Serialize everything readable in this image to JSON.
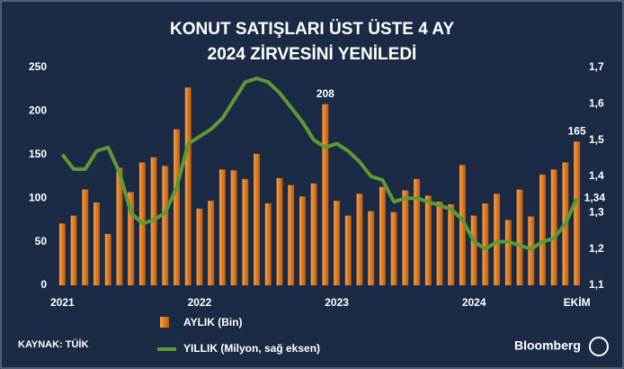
{
  "chart_data": {
    "type": "bar_line",
    "title": [
      "KONUT SATIŞLARI ÜST ÜSTE 4 AY",
      "2024 ZİRVESİNİ YENİLEDİ"
    ],
    "categories": [
      "2021",
      null,
      null,
      null,
      null,
      null,
      null,
      null,
      null,
      null,
      null,
      null,
      "2022",
      null,
      null,
      null,
      null,
      null,
      null,
      null,
      null,
      null,
      null,
      null,
      "2023",
      null,
      null,
      null,
      null,
      null,
      null,
      null,
      null,
      null,
      null,
      null,
      "2024",
      null,
      null,
      null,
      null,
      null,
      null,
      null,
      null,
      "EKİM"
    ],
    "series": [
      {
        "name": "AYLIK (Bin)",
        "color": "#e07a1f",
        "values": [
          71,
          80,
          110,
          95,
          59,
          135,
          107,
          141,
          147,
          137,
          179,
          227,
          88,
          97,
          133,
          132,
          122,
          151,
          94,
          123,
          115,
          102,
          117,
          208,
          97,
          80,
          105,
          85,
          113,
          84,
          109,
          122,
          103,
          96,
          93,
          138,
          80,
          94,
          105,
          75,
          110,
          79,
          127,
          133,
          141,
          165
        ],
        "value_labels": [
          null,
          null,
          null,
          null,
          null,
          null,
          null,
          null,
          null,
          null,
          null,
          null,
          null,
          null,
          null,
          null,
          null,
          null,
          null,
          null,
          null,
          null,
          null,
          "208",
          null,
          null,
          null,
          null,
          null,
          null,
          null,
          null,
          null,
          null,
          null,
          null,
          null,
          null,
          null,
          null,
          null,
          null,
          null,
          null,
          null,
          "165"
        ]
      },
      {
        "name": "YILLIK (Milyon, sağ eksen)",
        "color": "#5c9a35",
        "axis": "y2",
        "values": [
          1.46,
          1.42,
          1.42,
          1.47,
          1.48,
          1.41,
          1.3,
          1.27,
          1.28,
          1.3,
          1.37,
          1.49,
          1.51,
          1.53,
          1.56,
          1.61,
          1.66,
          1.67,
          1.66,
          1.63,
          1.59,
          1.55,
          1.5,
          1.48,
          1.49,
          1.47,
          1.44,
          1.4,
          1.39,
          1.33,
          1.34,
          1.34,
          1.33,
          1.32,
          1.31,
          1.28,
          1.22,
          1.2,
          1.22,
          1.22,
          1.21,
          1.2,
          1.22,
          1.23,
          1.27,
          1.34
        ],
        "value_labels": [
          null,
          null,
          null,
          null,
          null,
          null,
          null,
          null,
          null,
          null,
          null,
          null,
          null,
          null,
          null,
          null,
          null,
          null,
          null,
          null,
          null,
          null,
          null,
          null,
          null,
          null,
          null,
          null,
          null,
          null,
          null,
          null,
          null,
          null,
          null,
          null,
          null,
          null,
          null,
          null,
          null,
          null,
          null,
          null,
          null,
          "1,34"
        ]
      }
    ],
    "ylim": [
      0,
      250
    ],
    "yticks": [
      0,
      50,
      100,
      150,
      200,
      250
    ],
    "y2lim": [
      1.1,
      1.7
    ],
    "y2ticks": [
      {
        "value": 1.1,
        "label": "1,1"
      },
      {
        "value": 1.2,
        "label": "1,2"
      },
      {
        "value": 1.3,
        "label": "1,3"
      },
      {
        "value": 1.4,
        "label": "1,4"
      },
      {
        "value": 1.5,
        "label": "1,5"
      },
      {
        "value": 1.6,
        "label": "1,6"
      },
      {
        "value": 1.7,
        "label": "1,7"
      }
    ],
    "source": "KAYNAK: TÜİK",
    "brand": "Bloomberg"
  }
}
